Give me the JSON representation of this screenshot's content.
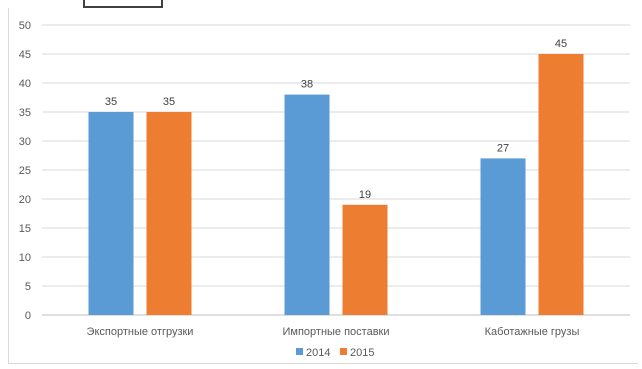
{
  "chart_data": {
    "type": "bar",
    "categories": [
      "Экспортные отгрузки",
      "Импортные поставки",
      "Каботажные грузы"
    ],
    "series": [
      {
        "name": "2014",
        "values": [
          35,
          38,
          27
        ],
        "color": "#5B9BD5"
      },
      {
        "name": "2015",
        "values": [
          35,
          19,
          45
        ],
        "color": "#ED7D31"
      }
    ],
    "data_labels": [
      [
        "35",
        "38",
        "27"
      ],
      [
        "35",
        "19",
        "45"
      ]
    ],
    "ylim": [
      0,
      50
    ],
    "yticks": [
      "0",
      "5",
      "10",
      "15",
      "20",
      "25",
      "30",
      "35",
      "40",
      "45",
      "50"
    ],
    "grid": true,
    "legend_position": "bottom"
  }
}
